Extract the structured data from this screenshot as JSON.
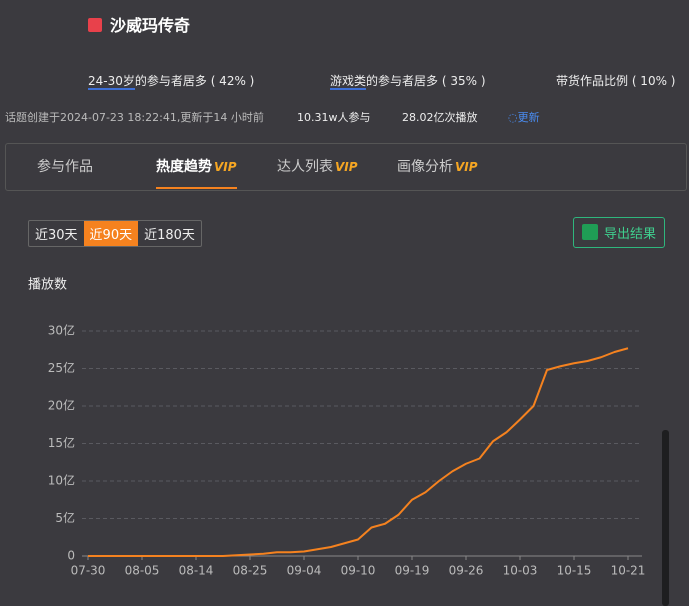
{
  "header": {
    "title": "沙威玛传奇"
  },
  "stats": [
    {
      "highlight": "24-30岁",
      "text": "的参与者居多 ( 42% )"
    },
    {
      "highlight": "游戏类",
      "text": "的参与者居多 ( 35% )"
    },
    {
      "text": "带货作品比例 ( 10% )"
    }
  ],
  "info": {
    "created": "话题创建于2024-07-23 18:22:41,更新于14 小时前",
    "participants": "10.31w人参与",
    "plays": "28.02亿次播放",
    "refresh": "更新"
  },
  "tabs": [
    {
      "label": "参与作品"
    },
    {
      "label": "热度趋势",
      "badge": "VIP"
    },
    {
      "label": "达人列表",
      "badge": "VIP"
    },
    {
      "label": "画像分析",
      "badge": "VIP"
    }
  ],
  "ranges": [
    "近30天",
    "近90天",
    "近180天"
  ],
  "export": "导出结果",
  "chart_data": {
    "type": "line",
    "y_label": "播放数",
    "color": "#f5821f",
    "categories": [
      "07-30",
      null,
      null,
      null,
      "08-05",
      null,
      null,
      null,
      "08-14",
      null,
      null,
      null,
      "08-25",
      null,
      null,
      null,
      "09-04",
      null,
      null,
      null,
      "09-10",
      null,
      null,
      null,
      "09-19",
      null,
      null,
      null,
      "09-26",
      null,
      null,
      null,
      "10-03",
      null,
      null,
      null,
      "10-15",
      null,
      null,
      null,
      "10-21"
    ],
    "values": [
      0,
      0,
      0,
      0,
      0,
      0,
      0,
      0,
      0,
      0,
      0,
      0.1,
      0.2,
      0.3,
      0.5,
      0.5,
      0.6,
      0.9,
      1.2,
      1.7,
      2.2,
      3.8,
      4.3,
      5.5,
      7.5,
      8.5,
      10.0,
      11.3,
      12.3,
      13.0,
      15.3,
      16.5,
      18.2,
      20.0,
      24.8,
      25.3,
      25.7,
      26.0,
      26.5,
      27.2,
      27.7
    ],
    "ylim": [
      0,
      30
    ],
    "yticks": [
      0,
      {
        "value": 5,
        "label": "5亿"
      },
      {
        "value": 10,
        "label": "10亿"
      },
      {
        "value": 15,
        "label": "15亿"
      },
      {
        "value": 20,
        "label": "20亿"
      },
      {
        "value": 25,
        "label": "25亿"
      },
      {
        "value": 30,
        "label": "30亿"
      }
    ],
    "grid": true
  }
}
